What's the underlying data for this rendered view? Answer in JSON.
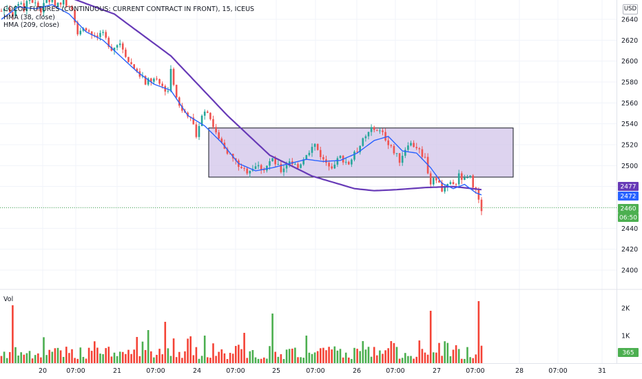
{
  "legend": {
    "symbol": "COCOA FUTURES (CONTINUOUS: CURRENT CONTRACT IN FRONT), 15, ICEUS",
    "hma_fast": "HMA (38, close)",
    "hma_slow": "HMA (209, close)",
    "volume": "Vol"
  },
  "currency_label": "USD",
  "colors": {
    "up": "#26a69a",
    "down": "#ef5350",
    "vol_up": "#4caf50",
    "vol_down": "#f44336",
    "hma_fast": "#2962ff",
    "hma_slow": "#673ab7",
    "box_fill": "#d1c4e9",
    "box_stroke": "#131722",
    "price_line": "#4caf50",
    "axis_text": "#131722"
  },
  "chart_data": {
    "type": "candlestick",
    "price_axis": {
      "min": 2380,
      "max": 2660,
      "ticks": [
        2400,
        2420,
        2440,
        2460,
        2480,
        2500,
        2520,
        2540,
        2560,
        2580,
        2600,
        2620,
        2640
      ]
    },
    "volume_axis": {
      "max": 2500,
      "ticks": [
        "1K",
        "2K"
      ],
      "tick_values": [
        1000,
        2000
      ]
    },
    "time_axis": {
      "labels": [
        "20",
        "07:00",
        "21",
        "07:00",
        "24",
        "07:00",
        "25",
        "07:00",
        "26",
        "07:00",
        "27",
        "07:00",
        "28",
        "07:00",
        "31"
      ]
    },
    "price_badges": [
      {
        "label": "2477",
        "value": 2477,
        "color": "#673ab7"
      },
      {
        "label": "2472",
        "value": 2472,
        "color": "#2962ff"
      },
      {
        "label": "2460",
        "value": 2460,
        "color": "#4caf50"
      },
      {
        "label": "06:50",
        "value": 2457,
        "color": "#4caf50"
      }
    ],
    "volume_badge": {
      "label": "365",
      "value": 365,
      "color": "#4caf50"
    },
    "last_price": 2460,
    "box": {
      "start_date": "24 ~10:00",
      "end_date": "27 ~11:00",
      "top": 2536,
      "bottom": 2489
    },
    "price_path": [
      [
        0,
        2648
      ],
      [
        2,
        2652
      ],
      [
        4,
        2645
      ],
      [
        6,
        2655
      ],
      [
        8,
        2650
      ],
      [
        10,
        2660
      ],
      [
        12,
        2655
      ],
      [
        14,
        2648
      ],
      [
        16,
        2660
      ],
      [
        19,
        2655
      ],
      [
        22,
        2658
      ],
      [
        25,
        2650
      ],
      [
        27,
        2628
      ],
      [
        30,
        2632
      ],
      [
        33,
        2622
      ],
      [
        36,
        2625
      ],
      [
        39,
        2612
      ],
      [
        42,
        2618
      ],
      [
        45,
        2600
      ],
      [
        48,
        2590
      ],
      [
        51,
        2580
      ],
      [
        54,
        2582
      ],
      [
        57,
        2576
      ],
      [
        59,
        2570
      ],
      [
        60,
        2595
      ],
      [
        62,
        2565
      ],
      [
        64,
        2552
      ],
      [
        67,
        2548
      ],
      [
        69,
        2530
      ],
      [
        71,
        2550
      ],
      [
        73,
        2553
      ],
      [
        75,
        2538
      ],
      [
        78,
        2522
      ],
      [
        81,
        2510
      ],
      [
        84,
        2500
      ],
      [
        87,
        2495
      ],
      [
        90,
        2500
      ],
      [
        93,
        2497
      ],
      [
        96,
        2506
      ],
      [
        99,
        2495
      ],
      [
        102,
        2505
      ],
      [
        105,
        2498
      ],
      [
        108,
        2512
      ],
      [
        111,
        2520
      ],
      [
        114,
        2505
      ],
      [
        117,
        2500
      ],
      [
        120,
        2508
      ],
      [
        123,
        2502
      ],
      [
        126,
        2515
      ],
      [
        129,
        2528
      ],
      [
        132,
        2537
      ],
      [
        135,
        2530
      ],
      [
        138,
        2518
      ],
      [
        141,
        2505
      ],
      [
        144,
        2522
      ],
      [
        147,
        2518
      ],
      [
        150,
        2507
      ],
      [
        152,
        2483
      ],
      [
        154,
        2488
      ],
      [
        156,
        2478
      ],
      [
        158,
        2485
      ],
      [
        160,
        2480
      ],
      [
        162,
        2490
      ],
      [
        164,
        2486
      ],
      [
        166,
        2488
      ],
      [
        168,
        2476
      ],
      [
        169,
        2465
      ],
      [
        170,
        2458
      ]
    ],
    "candle_count": 170,
    "candles_per_day": 27,
    "hma_fast_path": [
      [
        0,
        2640
      ],
      [
        6,
        2652
      ],
      [
        12,
        2650
      ],
      [
        18,
        2654
      ],
      [
        24,
        2645
      ],
      [
        30,
        2628
      ],
      [
        36,
        2620
      ],
      [
        42,
        2605
      ],
      [
        48,
        2590
      ],
      [
        54,
        2578
      ],
      [
        60,
        2572
      ],
      [
        66,
        2548
      ],
      [
        72,
        2538
      ],
      [
        78,
        2522
      ],
      [
        84,
        2502
      ],
      [
        90,
        2495
      ],
      [
        96,
        2498
      ],
      [
        102,
        2502
      ],
      [
        108,
        2506
      ],
      [
        114,
        2504
      ],
      [
        120,
        2505
      ],
      [
        126,
        2512
      ],
      [
        132,
        2524
      ],
      [
        137,
        2528
      ],
      [
        142,
        2514
      ],
      [
        147,
        2512
      ],
      [
        152,
        2498
      ],
      [
        156,
        2483
      ],
      [
        160,
        2478
      ],
      [
        164,
        2482
      ],
      [
        168,
        2474
      ],
      [
        170,
        2472
      ]
    ],
    "hma_slow_path": [
      [
        0,
        2670
      ],
      [
        20,
        2665
      ],
      [
        40,
        2645
      ],
      [
        60,
        2605
      ],
      [
        80,
        2548
      ],
      [
        95,
        2510
      ],
      [
        110,
        2490
      ],
      [
        125,
        2478
      ],
      [
        132,
        2476
      ],
      [
        140,
        2477
      ],
      [
        150,
        2479
      ],
      [
        160,
        2480
      ],
      [
        170,
        2477
      ]
    ],
    "volume_spikes": [
      [
        4,
        2100
      ],
      [
        48,
        950
      ],
      [
        52,
        1200
      ],
      [
        58,
        1500
      ],
      [
        72,
        1000
      ],
      [
        86,
        1100
      ],
      [
        96,
        1800
      ],
      [
        108,
        1000
      ],
      [
        128,
        800
      ],
      [
        138,
        800
      ],
      [
        152,
        1900
      ],
      [
        169,
        2250
      ]
    ]
  }
}
